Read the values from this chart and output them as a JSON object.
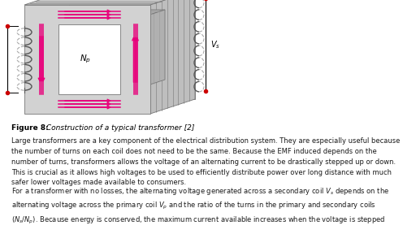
{
  "figure_label": "Figure 8:",
  "figure_caption": " Construction of a typical transformer [2]",
  "para1": "Large transformers are a key component of the electrical distribution system. They are especially useful because\nthe number of turns on each coil does not need to be the same. Because the EMF induced depends on the\nnumber of turns, transformers allows the voltage of an alternating current to be drastically stepped up or down.\nThis is crucial as it allows high voltages to be used to efficiently distribute power over long distance with much\nsafer lower voltages made available to consumers.",
  "para2_line1": "For a transformer with no losses, the alternating voltage generated across a secondary coil $V_s$ depends on the",
  "para2_line2": "alternating voltage across the primary coil $V_p$ and the ratio of the turns in the primary and secondary coils",
  "para2_line3": "$(N_s/N_p)$. Because energy is conserved, the maximum current available increases when the voltage is stepped",
  "bg_color": "#ffffff",
  "text_color": "#1a1a1a",
  "label_color": "#000000",
  "pink": "#E8007A",
  "gray_front": "#D2D2D2",
  "gray_top": "#C0C0C0",
  "gray_right": "#B8B8B8",
  "gray_back": "#BEBEBE",
  "gray_inner": "#CCCCCC",
  "gray_edge": "#777777"
}
